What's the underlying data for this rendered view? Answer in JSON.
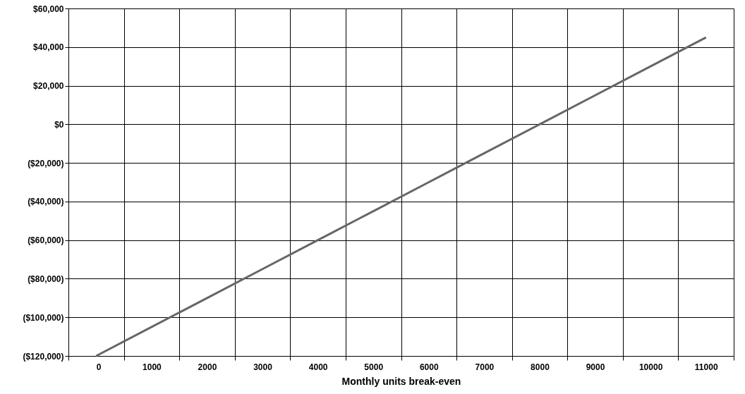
{
  "chart_data": {
    "type": "line",
    "xlabel": "Monthly units break-even",
    "categories": [
      "0",
      "1000",
      "2000",
      "3000",
      "4000",
      "5000",
      "6000",
      "7000",
      "8000",
      "9000",
      "10000",
      "11000"
    ],
    "series": [
      {
        "color": "#666666",
        "values": [
          -120000,
          -105000,
          -90000,
          -75000,
          -60000,
          -45000,
          -30000,
          -15000,
          0,
          15000,
          30000,
          45000
        ]
      }
    ],
    "ylim": [
      -120000,
      60000
    ],
    "yticks": [
      {
        "value": -120000,
        "label": "($120,000)"
      },
      {
        "value": -100000,
        "label": "($100,000)"
      },
      {
        "value": -80000,
        "label": "($80,000)"
      },
      {
        "value": -60000,
        "label": "($60,000)"
      },
      {
        "value": -40000,
        "label": "($40,000)"
      },
      {
        "value": -20000,
        "label": "($20,000)"
      },
      {
        "value": 0,
        "label": "$0"
      },
      {
        "value": 20000,
        "label": "$20,000"
      },
      {
        "value": 40000,
        "label": "$40,000"
      },
      {
        "value": 60000,
        "label": "$60,000"
      }
    ],
    "grid": true,
    "marker": "none",
    "line_style": "solid"
  }
}
